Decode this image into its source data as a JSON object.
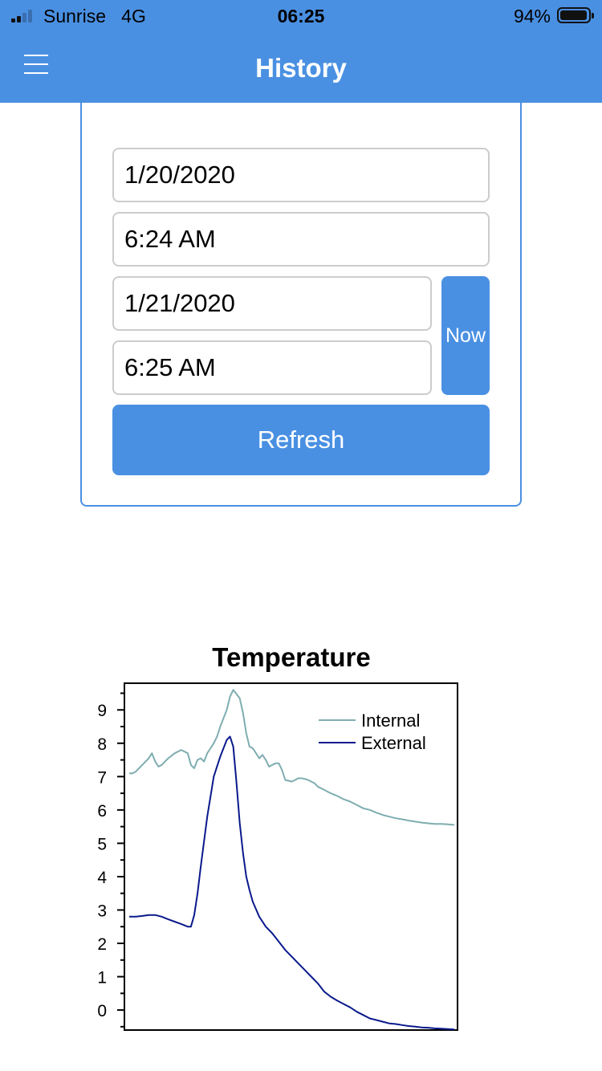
{
  "status_bar": {
    "carrier": "Sunrise",
    "network": "4G",
    "time": "06:25",
    "battery_percent": "94%"
  },
  "nav": {
    "title": "History",
    "menu_icon": "hamburger-menu-icon"
  },
  "form": {
    "start_date": "1/20/2020",
    "start_time": "6:24 AM",
    "end_date": "1/21/2020",
    "end_time": "6:25 AM",
    "now_label": "Now",
    "refresh_label": "Refresh"
  },
  "colors": {
    "accent": "#4a90e2",
    "internal": "#7fadb0",
    "external": "#0a1a8c"
  },
  "chart_data": {
    "type": "line",
    "title": "Temperature",
    "xlabel": "",
    "ylabel": "",
    "ylim": [
      -0.6,
      9.8
    ],
    "yticks": [
      0,
      1,
      2,
      3,
      4,
      5,
      6,
      7,
      8,
      9
    ],
    "legend": "top-right",
    "grid": false,
    "series": [
      {
        "name": "Internal",
        "color": "#7fadb0",
        "x": [
          0,
          0.01,
          0.02,
          0.04,
          0.06,
          0.07,
          0.08,
          0.09,
          0.1,
          0.11,
          0.12,
          0.14,
          0.16,
          0.18,
          0.19,
          0.2,
          0.21,
          0.22,
          0.23,
          0.24,
          0.25,
          0.26,
          0.27,
          0.28,
          0.3,
          0.31,
          0.32,
          0.34,
          0.35,
          0.36,
          0.37,
          0.38,
          0.39,
          0.4,
          0.41,
          0.42,
          0.43,
          0.44,
          0.45,
          0.46,
          0.47,
          0.48,
          0.5,
          0.51,
          0.52,
          0.53,
          0.54,
          0.55,
          0.56,
          0.57,
          0.58,
          0.6,
          0.62,
          0.64,
          0.66,
          0.68,
          0.7,
          0.72,
          0.74,
          0.76,
          0.78,
          0.8,
          0.82,
          0.84,
          0.86,
          0.88,
          0.9,
          0.92,
          0.94,
          0.96,
          0.98,
          1.0
        ],
        "y": [
          7.1,
          7.1,
          7.15,
          7.35,
          7.55,
          7.7,
          7.45,
          7.3,
          7.35,
          7.45,
          7.55,
          7.7,
          7.8,
          7.7,
          7.35,
          7.25,
          7.5,
          7.55,
          7.45,
          7.7,
          7.85,
          8.0,
          8.2,
          8.5,
          9.0,
          9.4,
          9.6,
          9.35,
          8.9,
          8.3,
          7.9,
          7.85,
          7.7,
          7.55,
          7.65,
          7.5,
          7.3,
          7.35,
          7.4,
          7.4,
          7.2,
          6.9,
          6.85,
          6.9,
          6.95,
          6.95,
          6.93,
          6.9,
          6.85,
          6.8,
          6.7,
          6.6,
          6.5,
          6.42,
          6.32,
          6.25,
          6.15,
          6.05,
          6.0,
          5.92,
          5.85,
          5.8,
          5.75,
          5.72,
          5.68,
          5.65,
          5.62,
          5.6,
          5.58,
          5.58,
          5.57,
          5.55
        ]
      },
      {
        "name": "External",
        "color": "#0a1a8c",
        "x": [
          0,
          0.02,
          0.04,
          0.06,
          0.08,
          0.1,
          0.12,
          0.14,
          0.16,
          0.18,
          0.19,
          0.2,
          0.21,
          0.22,
          0.24,
          0.26,
          0.28,
          0.3,
          0.31,
          0.32,
          0.33,
          0.34,
          0.35,
          0.36,
          0.37,
          0.38,
          0.4,
          0.42,
          0.44,
          0.46,
          0.48,
          0.5,
          0.52,
          0.54,
          0.56,
          0.58,
          0.6,
          0.62,
          0.64,
          0.66,
          0.68,
          0.7,
          0.72,
          0.74,
          0.76,
          0.78,
          0.8,
          0.82,
          0.84,
          0.86,
          0.88,
          0.9,
          0.92,
          0.94,
          0.96,
          0.98,
          1.0
        ],
        "y": [
          2.8,
          2.8,
          2.82,
          2.85,
          2.85,
          2.8,
          2.72,
          2.65,
          2.58,
          2.5,
          2.5,
          2.85,
          3.5,
          4.3,
          5.8,
          7.0,
          7.6,
          8.1,
          8.2,
          7.9,
          6.8,
          5.6,
          4.7,
          4.0,
          3.6,
          3.25,
          2.8,
          2.5,
          2.3,
          2.05,
          1.8,
          1.6,
          1.4,
          1.2,
          1.0,
          0.8,
          0.55,
          0.4,
          0.28,
          0.18,
          0.08,
          -0.05,
          -0.15,
          -0.25,
          -0.3,
          -0.35,
          -0.4,
          -0.42,
          -0.45,
          -0.48,
          -0.5,
          -0.52,
          -0.53,
          -0.55,
          -0.56,
          -0.57,
          -0.58
        ]
      }
    ]
  }
}
